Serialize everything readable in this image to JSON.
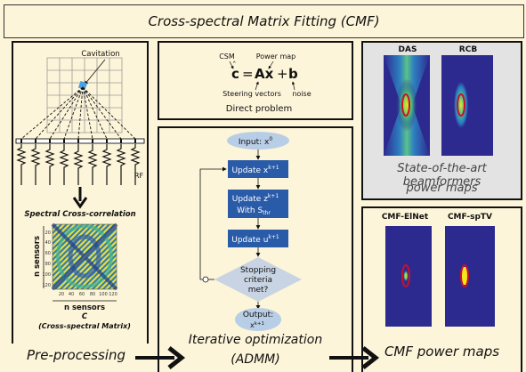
{
  "title": "Cross-spectral Matrix Fitting (CMF)",
  "preprocessing": {
    "cavitation_label": "Cavitation",
    "rf_label": "RF",
    "xcorr_label": "Spectral Cross-correlation",
    "y_axis_label": "n sensors",
    "x_axis_label": "n sensors",
    "c_symbol": "C",
    "csm_caption": "(Cross-spectral Matrix)",
    "y_ticks": [
      "20",
      "40",
      "60",
      "80",
      "100",
      "120"
    ],
    "x_ticks": [
      "20",
      "40",
      "60",
      "80",
      "100",
      "120"
    ],
    "stage_label": "Pre-processing"
  },
  "direct_problem": {
    "csm_label": "CSM",
    "power_map_label": "Power map",
    "steering_label": "Steering vectors",
    "noise_label": "noise",
    "caption": "Direct problem"
  },
  "admm": {
    "input_label": "Input: x",
    "input_sup": "0",
    "update_x": "Update x",
    "update_x_sup": "k+1",
    "update_z": "Update z",
    "update_z_sup": "k+1",
    "with_s": "With S",
    "with_s_sub": "thr",
    "update_u": "Update u",
    "update_u_sup": "k+1",
    "stop_1": "Stopping",
    "stop_2": "criteria",
    "stop_3": "met?",
    "output_label": "Output:",
    "output_val": "x",
    "output_sup": "k+1",
    "caption_1": "Iterative optimization",
    "caption_2": "(ADMM)"
  },
  "sota": {
    "das_label": "DAS",
    "rcb_label": "RCB",
    "caption_1": "State-of-the-art beamformers",
    "caption_2": "power maps"
  },
  "cmf": {
    "elnet_label": "CMF-ElNet",
    "sptv_label": "CMF-spTV",
    "caption": "CMF power maps"
  },
  "colors": {
    "background": "#fdf5d9",
    "flow_blue": "#2a5ba8",
    "oval_blue": "#b8cde6",
    "diamond": "#c8d4e3",
    "map_navy": "#2d2a8f",
    "ring_red": "#c8102e"
  }
}
